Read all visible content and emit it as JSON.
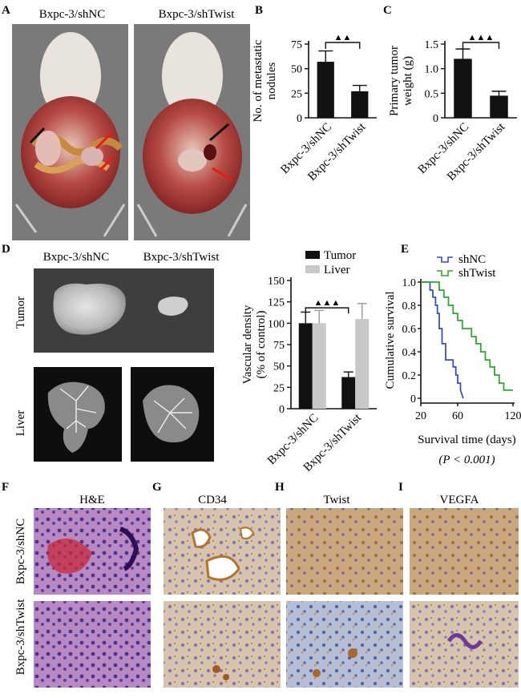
{
  "panel_letters": [
    "A",
    "B",
    "C",
    "D",
    "E",
    "F",
    "G",
    "H",
    "I"
  ],
  "panel_a": {
    "labels": [
      "Bxpc-3/shNC",
      "Bxpc-3/shTwist"
    ]
  },
  "panel_d": {
    "col_labels": [
      "Bxpc-3/shNC",
      "Bxpc-3/shTwist"
    ],
    "row_labels": [
      "Tumor",
      "Liver"
    ]
  },
  "panel_f": {
    "stains": [
      "H&E",
      "CD34",
      "Twist",
      "VEGFA"
    ],
    "row_labels": [
      "Bxpc-3/shNC",
      "Bxpc-3/shTwist"
    ]
  },
  "colors": {
    "black_bar": "#111111",
    "grey_bar": "#c8c8c8",
    "shNC": "#3a4fb0",
    "shTwist": "#2fa82f"
  },
  "chart_data": [
    {
      "id": "B",
      "type": "bar",
      "categories": [
        "Bxpc-3/shNC",
        "Bxpc-3/shTwist"
      ],
      "values": [
        57,
        27
      ],
      "errors": [
        11,
        6
      ],
      "ylabel": "No. of metastatic nodules",
      "ylim": [
        0,
        75
      ],
      "yticks": [
        0,
        25,
        50,
        75
      ],
      "significance": "▲▲"
    },
    {
      "id": "C",
      "type": "bar",
      "categories": [
        "Bxpc-3/shNC",
        "Bxpc-3/shTwist"
      ],
      "values": [
        1.2,
        0.45
      ],
      "errors": [
        0.2,
        0.09
      ],
      "ylabel": "Primary tumor weight (g)",
      "ylim": [
        0,
        1.5
      ],
      "yticks": [
        "0",
        "0.5",
        "1.0",
        "1.5"
      ],
      "significance": "▲▲▲"
    },
    {
      "id": "D",
      "type": "bar",
      "categories": [
        "Bxpc-3/shNC",
        "Bxpc-3/shTwist"
      ],
      "series": [
        {
          "name": "Tumor",
          "values": [
            100,
            37
          ],
          "errors": [
            13,
            6
          ]
        },
        {
          "name": "Liver",
          "values": [
            100,
            105
          ],
          "errors": [
            15,
            18
          ]
        }
      ],
      "ylabel": "Vascular density (% of control)",
      "ylim": [
        0,
        150
      ],
      "yticks": [
        0,
        25,
        50,
        75,
        100,
        125,
        150
      ],
      "significance": "▲▲▲",
      "legend": "top-right"
    },
    {
      "id": "E",
      "type": "line",
      "series": [
        {
          "name": "shNC",
          "x": [
            20,
            30,
            30,
            33,
            33,
            36,
            36,
            38,
            38,
            40,
            40,
            43,
            43,
            47,
            47,
            50,
            50,
            55,
            55,
            58,
            58,
            60,
            60,
            63,
            63,
            66
          ],
          "y": [
            1.0,
            1.0,
            0.93,
            0.93,
            0.87,
            0.87,
            0.8,
            0.8,
            0.73,
            0.73,
            0.6,
            0.6,
            0.47,
            0.47,
            0.33,
            0.33,
            0.33,
            0.33,
            0.27,
            0.27,
            0.2,
            0.2,
            0.13,
            0.13,
            0.07,
            0.0
          ]
        },
        {
          "name": "shTwist",
          "x": [
            20,
            40,
            40,
            45,
            45,
            50,
            50,
            55,
            55,
            60,
            60,
            65,
            65,
            75,
            75,
            80,
            80,
            85,
            85,
            90,
            90,
            95,
            95,
            100,
            100,
            105,
            105,
            110,
            110,
            115,
            115,
            120
          ],
          "y": [
            1.0,
            1.0,
            0.93,
            0.93,
            0.87,
            0.87,
            0.8,
            0.8,
            0.73,
            0.73,
            0.67,
            0.67,
            0.6,
            0.6,
            0.53,
            0.53,
            0.47,
            0.47,
            0.4,
            0.4,
            0.33,
            0.33,
            0.27,
            0.27,
            0.2,
            0.2,
            0.13,
            0.13,
            0.07,
            0.07,
            0.07,
            0.07
          ]
        }
      ],
      "xlabel": "Survival time (days)",
      "ylabel": "Cumulative survival",
      "xlim": [
        20,
        120
      ],
      "xticks": [
        20,
        60,
        120
      ],
      "ylim": [
        0,
        1.0
      ],
      "yticks": [
        "0",
        "0.2",
        "0.4",
        "0.6",
        "0.8",
        "1.0"
      ],
      "p_value": "(P < 0.001)",
      "legend": "top-right"
    }
  ]
}
